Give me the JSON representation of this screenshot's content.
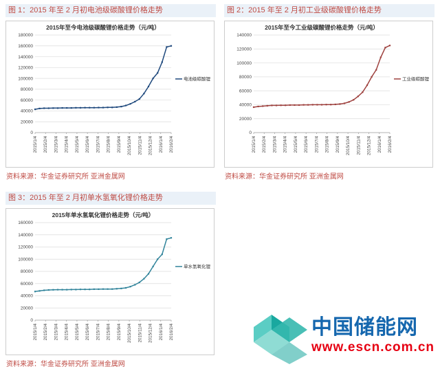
{
  "figures": [
    {
      "header": "图 1：2015 年至 2 月初电池级碳酸锂价格走势",
      "source": "资料来源：华金证券研究所 亚洲金属网"
    },
    {
      "header": "图 2：2015 年至 2 月初工业级碳酸锂价格走势",
      "source": "资料来源：华金证券研究所 亚洲金属网"
    },
    {
      "header": "图 3：2015 年至 2 月初单水氢氧化锂价格走势",
      "source": "资料来源：华金证券研究所 亚洲金属网"
    }
  ],
  "chart_data": [
    {
      "type": "line",
      "title": "2015年至今电池级碳酸锂价格走势（元/吨）",
      "legend": "电池级碳酸锂",
      "color": "#1F497D",
      "ylim": [
        0,
        180000
      ],
      "ytick": 20000,
      "grid": true,
      "legend_position": "right",
      "x_labels": [
        "2015/1/4",
        "2015/2/4",
        "2015/3/4",
        "2015/4/4",
        "2015/5/4",
        "2015/6/4",
        "2015/7/4",
        "2015/8/4",
        "2015/9/4",
        "2015/10/4",
        "2015/11/4",
        "2015/12/4",
        "2016/1/4",
        "2016/2/4"
      ],
      "values": [
        43000,
        44500,
        45000,
        45000,
        45200,
        45200,
        45500,
        45500,
        45500,
        45800,
        45800,
        46000,
        46000,
        46000,
        46200,
        46200,
        46500,
        46500,
        47000,
        48000,
        50000,
        53000,
        57000,
        62000,
        72000,
        85000,
        100000,
        110000,
        130000,
        158000,
        160000
      ]
    },
    {
      "type": "line",
      "title": "2015年至今工业级碳酸锂价格走势（元/吨）",
      "legend": "工业级碳酸锂",
      "color": "#9E413E",
      "ylim": [
        0,
        140000
      ],
      "ytick": 20000,
      "grid": true,
      "legend_position": "right",
      "x_labels": [
        "2015/1/4",
        "2015/2/4",
        "2015/3/4",
        "2015/4/4",
        "2015/5/4",
        "2015/6/4",
        "2015/7/4",
        "2015/8/4",
        "2015/9/4",
        "2015/10/4",
        "2015/11/4",
        "2015/12/4",
        "2016/1/4",
        "2016/2/4"
      ],
      "values": [
        36500,
        37500,
        38000,
        38500,
        39000,
        39000,
        39200,
        39200,
        39500,
        39500,
        39500,
        39800,
        39800,
        40000,
        40000,
        40000,
        40200,
        40200,
        40500,
        41000,
        42000,
        44000,
        47000,
        52000,
        58000,
        68000,
        80000,
        90000,
        108000,
        122000,
        125000
      ]
    },
    {
      "type": "line",
      "title": "2015年单水氢氧化锂价格走势（元/吨）",
      "legend": "单水氢氧化锂",
      "color": "#31849B",
      "ylim": [
        0,
        160000
      ],
      "ytick": 20000,
      "grid": true,
      "legend_position": "right",
      "x_labels": [
        "2015/1/4",
        "2015/2/4",
        "2015/3/4",
        "2015/4/4",
        "2015/5/4",
        "2015/6/4",
        "2015/7/4",
        "2015/8/4",
        "2015/9/4",
        "2015/10/4",
        "2015/11/4",
        "2015/12/4",
        "2016/1/4",
        "2016/2/4"
      ],
      "values": [
        47000,
        48000,
        49000,
        49500,
        49800,
        50000,
        50000,
        50000,
        50200,
        50200,
        50500,
        50500,
        50500,
        50800,
        50800,
        51000,
        51000,
        51000,
        51500,
        52000,
        53000,
        55000,
        58000,
        62000,
        68000,
        76000,
        88000,
        100000,
        108000,
        133000,
        135000
      ]
    }
  ],
  "logo": {
    "title": "中国储能网",
    "url": "www.escn.com.cn",
    "mark_colors": [
      "#5BCDC4",
      "#19A89F",
      "#8FDCD4",
      "#35B8AE"
    ]
  }
}
